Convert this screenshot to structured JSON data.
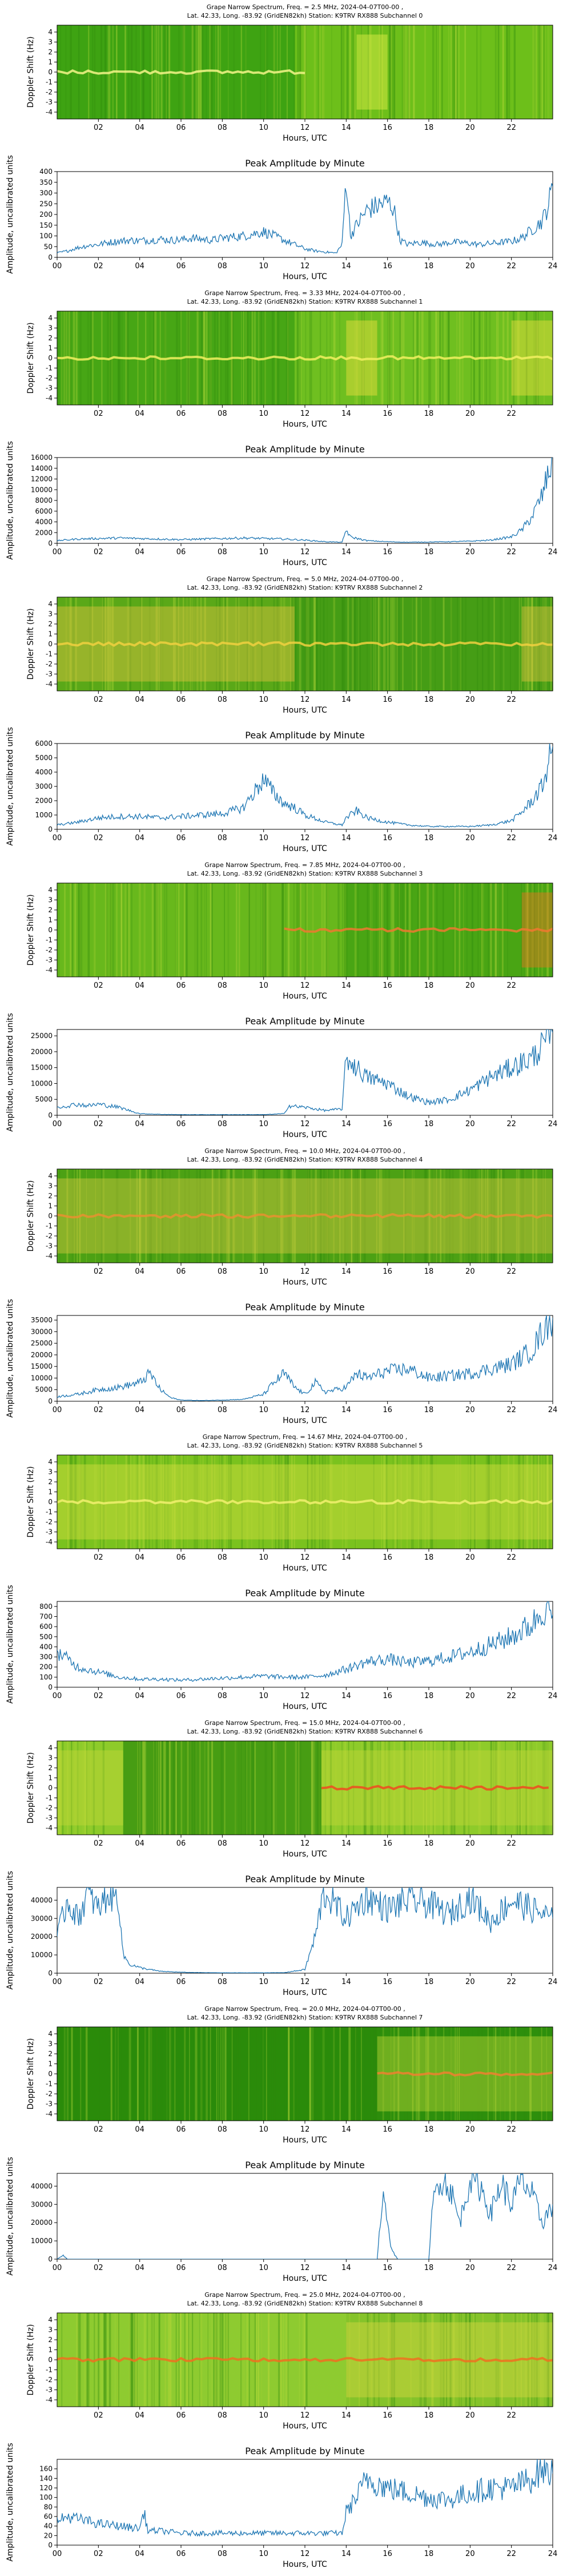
{
  "station": {
    "line2": "Lat.  42.33, Long. -83.92 (GridEN82kh) Station: K9TRV RX888"
  },
  "common": {
    "xlabel": "Hours, UTC",
    "spectrum_ylabel": "Doppler Shift (Hz)",
    "amp_title": "Peak Amplitude by Minute",
    "amp_ylabel": "Amplitude, uncalibrated units",
    "spectrum_xticks": [
      "02",
      "04",
      "06",
      "08",
      "10",
      "12",
      "14",
      "16",
      "18",
      "20",
      "22"
    ],
    "amp_xticks": [
      "00",
      "02",
      "04",
      "06",
      "08",
      "10",
      "12",
      "14",
      "16",
      "18",
      "20",
      "22",
      "24"
    ],
    "doppler_ticks": [
      "4",
      "3",
      "2",
      "1",
      "0",
      "-1",
      "-2",
      "-3",
      "-4"
    ],
    "line_color": "#1f77b4"
  },
  "chart_data": [
    {
      "type": "heatmap",
      "title": "Grape Narrow Spectrum, Freq. = 2.5 MHz, 2024-04-07T00-00 ,",
      "subtitle": "Lat.  42.33, Long. -83.92 (GridEN82kh) Station: K9TRV RX888 Subchannel 0",
      "xlabel": "Hours, UTC",
      "ylabel": "Doppler Shift (Hz)",
      "xlim": [
        0,
        24
      ],
      "ylim": [
        -5,
        5
      ]
    },
    {
      "type": "line",
      "title": "Peak Amplitude by Minute",
      "xlabel": "Hours, UTC",
      "ylabel": "Amplitude, uncalibrated units",
      "xlim": [
        0,
        24
      ],
      "ylim": [
        0,
        400
      ],
      "yticks": [
        0,
        50,
        100,
        150,
        200,
        250,
        300,
        350,
        400
      ],
      "x": [
        0,
        0.5,
        1,
        1.5,
        2,
        2.5,
        3,
        3.5,
        4,
        4.5,
        5,
        5.5,
        6,
        6.5,
        7,
        7.5,
        8,
        8.5,
        9,
        9.5,
        10,
        10.5,
        11,
        11.5,
        12,
        12.5,
        13,
        13.5,
        13.8,
        14,
        14.2,
        14.5,
        15,
        15.5,
        16,
        16.3,
        16.6,
        17,
        17.5,
        18,
        18.5,
        19,
        19.5,
        20,
        20.5,
        21,
        21.5,
        22,
        22.5,
        23,
        23.5,
        23.8,
        24
      ],
      "y": [
        20,
        30,
        45,
        55,
        60,
        70,
        75,
        80,
        78,
        80,
        85,
        80,
        82,
        90,
        85,
        80,
        90,
        95,
        100,
        110,
        120,
        100,
        80,
        60,
        40,
        30,
        25,
        20,
        60,
        380,
        100,
        150,
        220,
        240,
        260,
        230,
        80,
        60,
        70,
        65,
        60,
        70,
        70,
        65,
        60,
        65,
        70,
        75,
        90,
        130,
        170,
        250,
        330
      ]
    },
    {
      "type": "heatmap",
      "title": "Grape Narrow Spectrum, Freq. = 3.33 MHz, 2024-04-07T00-00 ,",
      "subtitle": "Lat.  42.33, Long. -83.92 (GridEN82kh) Station: K9TRV RX888 Subchannel 1",
      "xlabel": "Hours, UTC",
      "ylabel": "Doppler Shift (Hz)",
      "xlim": [
        0,
        24
      ],
      "ylim": [
        -5,
        5
      ]
    },
    {
      "type": "line",
      "title": "Peak Amplitude by Minute",
      "xlabel": "Hours, UTC",
      "ylabel": "Amplitude, uncalibrated units",
      "xlim": [
        0,
        24
      ],
      "ylim": [
        0,
        16000
      ],
      "yticks": [
        0,
        2000,
        4000,
        6000,
        8000,
        10000,
        12000,
        14000,
        16000
      ],
      "x": [
        0,
        1,
        2,
        3,
        4,
        5,
        6,
        7,
        8,
        9,
        10,
        11,
        12,
        13,
        13.8,
        14,
        14.2,
        15,
        16,
        17,
        18,
        19,
        20,
        21,
        22,
        22.5,
        23,
        23.5,
        24
      ],
      "y": [
        500,
        800,
        900,
        1000,
        900,
        800,
        700,
        800,
        900,
        1000,
        900,
        800,
        600,
        300,
        200,
        2500,
        1200,
        500,
        300,
        200,
        250,
        300,
        400,
        600,
        1200,
        2500,
        5000,
        9000,
        16000
      ]
    },
    {
      "type": "heatmap",
      "title": "Grape Narrow Spectrum, Freq. = 5.0 MHz, 2024-04-07T00-00 ,",
      "subtitle": "Lat.  42.33, Long. -83.92 (GridEN82kh) Station: K9TRV RX888 Subchannel 2",
      "xlabel": "Hours, UTC",
      "ylabel": "Doppler Shift (Hz)",
      "xlim": [
        0,
        24
      ],
      "ylim": [
        -5,
        5
      ]
    },
    {
      "type": "line",
      "title": "Peak Amplitude by Minute",
      "xlabel": "Hours, UTC",
      "ylabel": "Amplitude, uncalibrated units",
      "xlim": [
        0,
        24
      ],
      "ylim": [
        0,
        6000
      ],
      "yticks": [
        0,
        1000,
        2000,
        3000,
        4000,
        5000,
        6000
      ],
      "x": [
        0,
        1,
        2,
        3,
        4,
        5,
        6,
        7,
        8,
        9,
        9.5,
        10,
        10.5,
        11,
        11.5,
        12,
        13,
        13.8,
        14,
        14.5,
        15,
        16,
        17,
        18,
        19,
        20,
        21,
        22,
        22.5,
        23,
        23.5,
        24
      ],
      "y": [
        300,
        500,
        800,
        900,
        900,
        800,
        900,
        1000,
        1100,
        1500,
        2500,
        3500,
        2500,
        1800,
        1500,
        1000,
        500,
        300,
        800,
        1300,
        800,
        500,
        300,
        200,
        200,
        200,
        300,
        600,
        1200,
        2000,
        3000,
        5800
      ]
    },
    {
      "type": "heatmap",
      "title": "Grape Narrow Spectrum, Freq. = 7.85 MHz, 2024-04-07T00-00 ,",
      "subtitle": "Lat.  42.33, Long. -83.92 (GridEN82kh) Station: K9TRV RX888 Subchannel 3",
      "xlabel": "Hours, UTC",
      "ylabel": "Doppler Shift (Hz)",
      "xlim": [
        0,
        24
      ],
      "ylim": [
        -5,
        5
      ]
    },
    {
      "type": "line",
      "title": "Peak Amplitude by Minute",
      "xlabel": "Hours, UTC",
      "ylabel": "Amplitude, uncalibrated units",
      "xlim": [
        0,
        24
      ],
      "ylim": [
        0,
        27000
      ],
      "yticks": [
        0,
        5000,
        10000,
        15000,
        20000,
        25000
      ],
      "x": [
        0,
        0.5,
        1,
        1.5,
        2,
        2.5,
        3,
        3.5,
        4,
        5,
        6,
        7,
        8,
        9,
        10,
        11,
        11.2,
        12,
        13,
        13.8,
        14,
        14.5,
        15,
        16,
        17,
        18,
        19,
        20,
        21,
        22,
        23,
        23.5,
        24
      ],
      "y": [
        2500,
        3000,
        3500,
        3000,
        3500,
        3000,
        2500,
        1500,
        500,
        300,
        200,
        200,
        200,
        200,
        200,
        500,
        3000,
        2500,
        1500,
        2000,
        18000,
        15000,
        12000,
        10000,
        6000,
        4000,
        5000,
        8000,
        12000,
        15000,
        18000,
        22000,
        26000
      ]
    },
    {
      "type": "heatmap",
      "title": "Grape Narrow Spectrum, Freq. = 10.0 MHz, 2024-04-07T00-00 ,",
      "subtitle": "Lat.  42.33, Long. -83.92 (GridEN82kh) Station: K9TRV RX888 Subchannel 4",
      "xlabel": "Hours, UTC",
      "ylabel": "Doppler Shift (Hz)",
      "xlim": [
        0,
        24
      ],
      "ylim": [
        -5,
        5
      ]
    },
    {
      "type": "line",
      "title": "Peak Amplitude by Minute",
      "xlabel": "Hours, UTC",
      "ylabel": "Amplitude, uncalibrated units",
      "xlim": [
        0,
        24
      ],
      "ylim": [
        0,
        37000
      ],
      "yticks": [
        0,
        5000,
        10000,
        15000,
        20000,
        25000,
        30000,
        35000
      ],
      "x": [
        0,
        1,
        2,
        3,
        4,
        4.5,
        5,
        5.5,
        6,
        7,
        8,
        9,
        10,
        10.5,
        11,
        11.5,
        12,
        12.5,
        13,
        14,
        14.5,
        15,
        16,
        17,
        18,
        19,
        20,
        21,
        22,
        23,
        23.5,
        24
      ],
      "y": [
        2000,
        3000,
        5000,
        6000,
        8000,
        12000,
        5000,
        1500,
        500,
        300,
        500,
        800,
        3000,
        8000,
        12000,
        6000,
        3000,
        8000,
        4000,
        6000,
        12000,
        10000,
        13000,
        14000,
        10000,
        11000,
        12000,
        14000,
        16000,
        22000,
        30000,
        36000
      ]
    },
    {
      "type": "heatmap",
      "title": "Grape Narrow Spectrum, Freq. = 14.67 MHz, 2024-04-07T00-00 ,",
      "subtitle": "Lat.  42.33, Long. -83.92 (GridEN82kh) Station: K9TRV RX888 Subchannel 5",
      "xlabel": "Hours, UTC",
      "ylabel": "Doppler Shift (Hz)",
      "xlim": [
        0,
        24
      ],
      "ylim": [
        -5,
        5
      ]
    },
    {
      "type": "line",
      "title": "Peak Amplitude by Minute",
      "xlabel": "Hours, UTC",
      "ylabel": "Amplitude, uncalibrated units",
      "xlim": [
        0,
        24
      ],
      "ylim": [
        0,
        850
      ],
      "yticks": [
        0,
        100,
        200,
        300,
        400,
        500,
        600,
        700,
        800
      ],
      "x": [
        0,
        0.5,
        1,
        2,
        3,
        4,
        5,
        6,
        7,
        8,
        9,
        10,
        11,
        12,
        13,
        14,
        15,
        16,
        17,
        18,
        19,
        20,
        21,
        22,
        23,
        23.5,
        24
      ],
      "y": [
        350,
        280,
        200,
        150,
        100,
        80,
        80,
        70,
        80,
        90,
        100,
        110,
        100,
        100,
        120,
        180,
        250,
        280,
        240,
        260,
        300,
        350,
        420,
        500,
        620,
        780,
        720
      ]
    },
    {
      "type": "heatmap",
      "title": "Grape Narrow Spectrum, Freq. = 15.0 MHz, 2024-04-07T00-00 ,",
      "subtitle": "Lat.  42.33, Long. -83.92 (GridEN82kh) Station: K9TRV RX888 Subchannel 6",
      "xlabel": "Hours, UTC",
      "ylabel": "Doppler Shift (Hz)",
      "xlim": [
        0,
        24
      ],
      "ylim": [
        -5,
        5
      ]
    },
    {
      "type": "line",
      "title": "Peak Amplitude by Minute",
      "xlabel": "Hours, UTC",
      "ylabel": "Amplitude, uncalibrated units",
      "xlim": [
        0,
        24
      ],
      "ylim": [
        0,
        47000
      ],
      "yticks": [
        0,
        10000,
        20000,
        30000,
        40000
      ],
      "x": [
        0,
        0.5,
        1,
        1.5,
        2,
        2.5,
        3,
        3.2,
        3.5,
        4,
        5,
        6,
        7,
        8,
        9,
        10,
        11,
        12,
        12.5,
        12.8,
        13,
        14,
        15,
        16,
        17,
        18,
        19,
        20,
        21,
        22,
        23,
        24
      ],
      "y": [
        20000,
        40000,
        30000,
        44000,
        35000,
        44000,
        40000,
        10000,
        5000,
        3000,
        1000,
        500,
        300,
        200,
        200,
        200,
        300,
        2000,
        20000,
        38000,
        44000,
        30000,
        42000,
        35000,
        40000,
        38000,
        32000,
        42000,
        28000,
        40000,
        35000,
        30000
      ]
    },
    {
      "type": "heatmap",
      "title": "Grape Narrow Spectrum, Freq. = 20.0 MHz, 2024-04-07T00-00 ,",
      "subtitle": "Lat.  42.33, Long. -83.92 (GridEN82kh) Station: K9TRV RX888 Subchannel 7",
      "xlabel": "Hours, UTC",
      "ylabel": "Doppler Shift (Hz)",
      "xlim": [
        0,
        24
      ],
      "ylim": [
        -5,
        5
      ]
    },
    {
      "type": "line",
      "title": "Peak Amplitude by Minute",
      "xlabel": "Hours, UTC",
      "ylabel": "Amplitude, uncalibrated units",
      "xlim": [
        0,
        24
      ],
      "ylim": [
        0,
        47000
      ],
      "yticks": [
        0,
        10000,
        20000,
        30000,
        40000
      ],
      "x": [
        0,
        0.3,
        0.5,
        1,
        2,
        4,
        6,
        8,
        10,
        12,
        14,
        15,
        15.5,
        15.8,
        16,
        16.2,
        16.5,
        17,
        18,
        18.2,
        18.5,
        19,
        19.5,
        20,
        20.5,
        21,
        21.5,
        22,
        22.5,
        23,
        23.5,
        24
      ],
      "y": [
        0,
        2000,
        0,
        0,
        0,
        0,
        0,
        0,
        0,
        0,
        0,
        0,
        0,
        40000,
        20000,
        5000,
        0,
        0,
        0,
        30000,
        45000,
        40000,
        20000,
        45000,
        40000,
        25000,
        42000,
        30000,
        44000,
        35000,
        20000,
        30000
      ]
    },
    {
      "type": "heatmap",
      "title": "Grape Narrow Spectrum, Freq. = 25.0 MHz, 2024-04-07T00-00 ,",
      "subtitle": "Lat.  42.33, Long. -83.92 (GridEN82kh) Station: K9TRV RX888 Subchannel 8",
      "xlabel": "Hours, UTC",
      "ylabel": "Doppler Shift (Hz)",
      "xlim": [
        0,
        24
      ],
      "ylim": [
        -5,
        5
      ]
    },
    {
      "type": "line",
      "title": "Peak Amplitude by Minute",
      "xlabel": "Hours, UTC",
      "ylabel": "Amplitude, uncalibrated units",
      "xlim": [
        0,
        24
      ],
      "ylim": [
        0,
        180
      ],
      "yticks": [
        0,
        20,
        40,
        60,
        80,
        100,
        120,
        140,
        160
      ],
      "x": [
        0,
        0.5,
        1,
        1.5,
        2,
        3,
        4,
        4.2,
        4.4,
        5,
        6,
        7,
        8,
        9,
        10,
        11,
        12,
        13,
        13.8,
        14,
        14.5,
        15,
        16,
        17,
        18,
        19,
        20,
        21,
        22,
        23,
        23.5,
        24
      ],
      "y": [
        50,
        60,
        55,
        50,
        45,
        40,
        35,
        70,
        30,
        30,
        25,
        25,
        25,
        25,
        25,
        25,
        25,
        25,
        25,
        70,
        100,
        140,
        120,
        110,
        100,
        95,
        110,
        120,
        120,
        140,
        160,
        150
      ]
    }
  ]
}
